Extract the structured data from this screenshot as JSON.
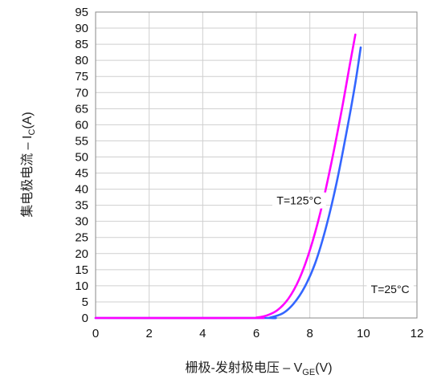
{
  "chart_data": {
    "type": "line",
    "xlabel": "栅极-发射极电压 – V",
    "xlabel_sub": "GE",
    "xlabel_suffix": "(V)",
    "ylabel": "集电极电流 – I",
    "ylabel_sub": "C",
    "ylabel_suffix": "(A)",
    "xlim": [
      0,
      12
    ],
    "ylim": [
      0,
      95
    ],
    "x_ticks": [
      0,
      2,
      4,
      6,
      8,
      10,
      12
    ],
    "y_ticks": [
      0,
      5,
      10,
      15,
      20,
      25,
      30,
      35,
      40,
      45,
      50,
      55,
      60,
      65,
      70,
      75,
      80,
      85,
      90,
      95
    ],
    "x_tick_labels": [
      "0",
      "2",
      "4",
      "6",
      "8",
      "10",
      "12"
    ],
    "y_tick_labels": [
      "0",
      "5",
      "10",
      "15",
      "20",
      "25",
      "30",
      "35",
      "40",
      "45",
      "50",
      "55",
      "60",
      "65",
      "70",
      "75",
      "80",
      "85",
      "90",
      "95"
    ],
    "grid": true,
    "series": [
      {
        "name": "T=125°C",
        "color": "#ff00ff",
        "x": [
          0,
          5.8,
          6.0,
          6.4,
          6.8,
          7.2,
          7.6,
          8.0,
          8.4,
          8.8,
          9.2,
          9.5,
          9.7
        ],
        "y": [
          0,
          0,
          0.1,
          0.8,
          2.5,
          6,
          12,
          21,
          33,
          48,
          65,
          79,
          88
        ]
      },
      {
        "name": "T=25°C",
        "color": "#3366ff",
        "x": [
          0,
          6.2,
          6.5,
          7.0,
          7.4,
          7.8,
          8.2,
          8.6,
          9.0,
          9.4,
          9.7,
          9.9
        ],
        "y": [
          0,
          0,
          0.1,
          1.5,
          4.5,
          9.5,
          17,
          28,
          42,
          59,
          73,
          84
        ]
      }
    ],
    "annotations": [
      {
        "text": "T=125°C",
        "x": 7.6,
        "y": 36.5
      },
      {
        "text": "T=25°C",
        "x": 11.0,
        "y": 9.0
      }
    ]
  }
}
